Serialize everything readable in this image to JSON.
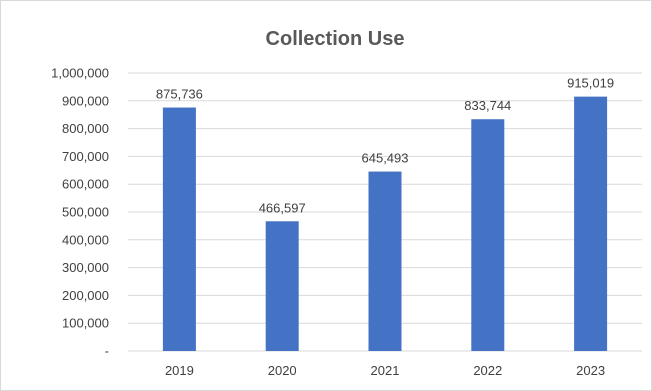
{
  "chart_data": {
    "type": "bar",
    "title": "Collection Use",
    "xlabel": "",
    "ylabel": "",
    "categories": [
      "2019",
      "2020",
      "2021",
      "2022",
      "2023"
    ],
    "values": [
      875736,
      466597,
      645493,
      833744,
      915019
    ],
    "data_labels": [
      "875,736",
      "466,597",
      "645,493",
      "833,744",
      "915,019"
    ],
    "ylim": [
      0,
      1000000
    ],
    "y_ticks": [
      0,
      100000,
      200000,
      300000,
      400000,
      500000,
      600000,
      700000,
      800000,
      900000,
      1000000
    ],
    "y_tick_labels": [
      "-",
      "100,000",
      "200,000",
      "300,000",
      "400,000",
      "500,000",
      "600,000",
      "700,000",
      "800,000",
      "900,000",
      "1,000,000"
    ],
    "grid": true,
    "legend": "none",
    "bar_color": "#4472C4"
  }
}
